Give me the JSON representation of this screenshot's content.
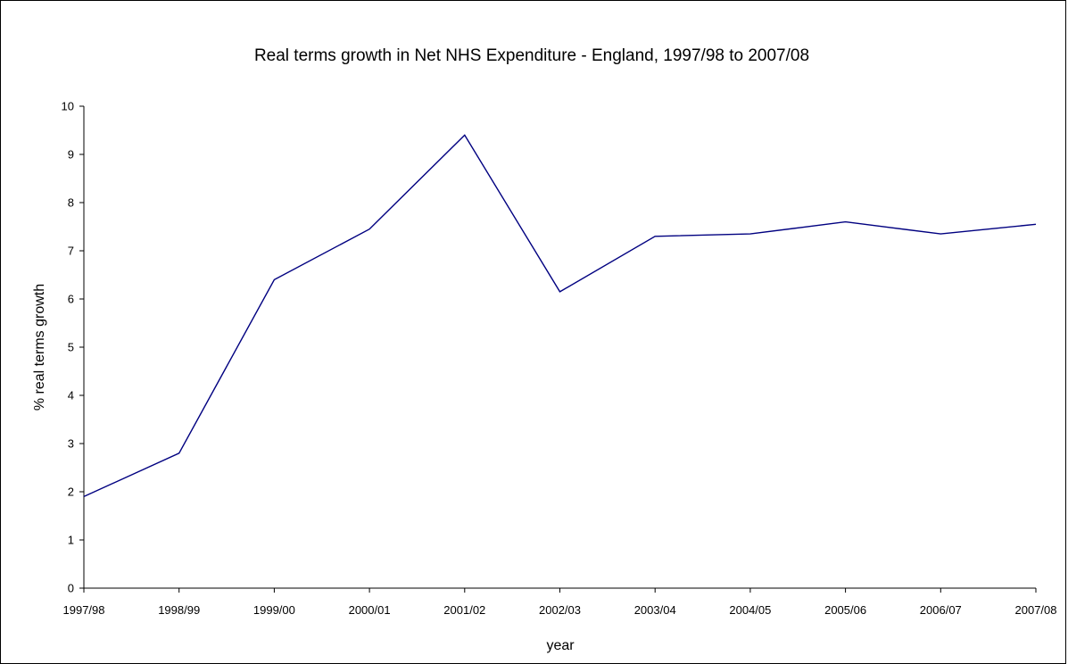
{
  "chart_data": {
    "type": "line",
    "title": "Real terms growth in Net NHS Expenditure - England, 1997/98 to 2007/08",
    "xlabel": "year",
    "ylabel": "% real terms growth",
    "categories": [
      "1997/98",
      "1998/99",
      "1999/00",
      "2000/01",
      "2001/02",
      "2002/03",
      "2003/04",
      "2004/05",
      "2005/06",
      "2006/07",
      "2007/08"
    ],
    "series": [
      {
        "values": [
          1.9,
          2.8,
          6.4,
          7.45,
          9.4,
          6.15,
          7.3,
          7.35,
          7.6,
          7.35,
          7.55
        ]
      }
    ],
    "ylim": [
      0,
      10
    ],
    "yticks": [
      "0",
      "1",
      "2",
      "3",
      "4",
      "5",
      "6",
      "7",
      "8",
      "9",
      "10"
    ],
    "grid": false,
    "legend": "none",
    "line_color": "#000080"
  }
}
